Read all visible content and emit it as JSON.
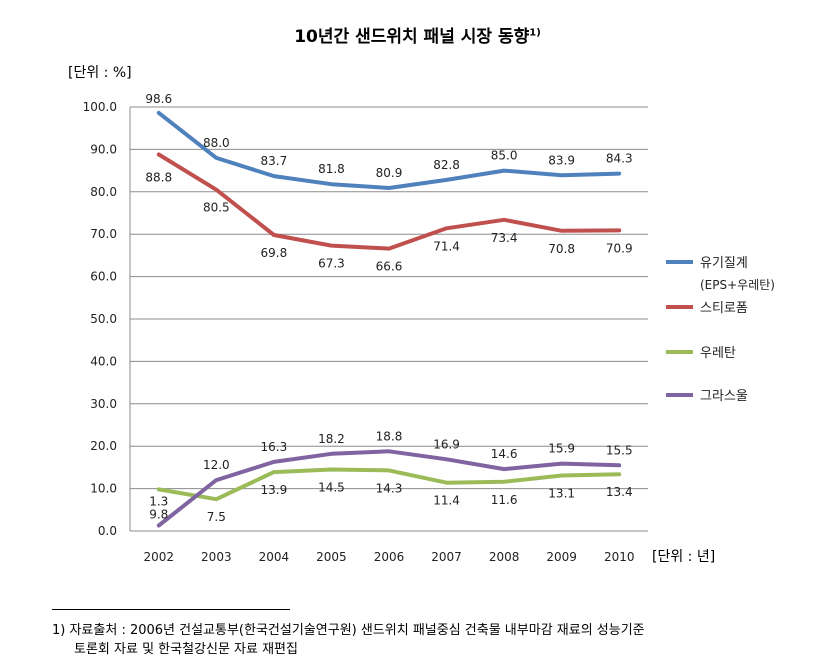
{
  "title": "10년간 샌드위치 패널 시장 동향",
  "title_sup": "1)",
  "y_unit_label": "[단위 : %]",
  "x_unit_label": "[단위 : 년]",
  "chart_data": {
    "type": "line",
    "title": "10년간 샌드위치 패널 시장 동향",
    "xlabel": "[단위 : 년]",
    "ylabel": "[단위 : %]",
    "ylim": [
      0,
      100
    ],
    "yticks": [
      "0.0",
      "10.0",
      "20.0",
      "30.0",
      "40.0",
      "50.0",
      "60.0",
      "70.0",
      "80.0",
      "90.0",
      "100.0"
    ],
    "grid": true,
    "legend_position": "right",
    "categories": [
      "2002",
      "2003",
      "2004",
      "2005",
      "2006",
      "2007",
      "2008",
      "2009",
      "2010"
    ],
    "series": [
      {
        "name": "유기질계",
        "sublabel": "(EPS+우레탄)",
        "color": "#4F81BD",
        "values": [
          98.6,
          88.0,
          83.7,
          81.8,
          80.9,
          82.8,
          85.0,
          83.9,
          84.3
        ],
        "labels": [
          "98.6",
          "88.0",
          "83.7",
          "81.8",
          "80.9",
          "82.8",
          "85.0",
          "83.9",
          "84.3"
        ]
      },
      {
        "name": "스티로폼",
        "color": "#C0504D",
        "values": [
          88.8,
          80.5,
          69.8,
          67.3,
          66.6,
          71.4,
          73.4,
          70.8,
          70.9
        ],
        "labels": [
          "88.8",
          "80.5",
          "69.8",
          "67.3",
          "66.6",
          "71.4",
          "73.4",
          "70.8",
          "70.9"
        ]
      },
      {
        "name": "우레탄",
        "color": "#9BBB59",
        "values": [
          9.8,
          7.5,
          13.9,
          14.5,
          14.3,
          11.4,
          11.6,
          13.1,
          13.4
        ],
        "labels": [
          "9.8",
          "7.5",
          "13.9",
          "14.5",
          "14.3",
          "11.4",
          "11.6",
          "13.1",
          "13.4"
        ]
      },
      {
        "name": "그라스울",
        "color": "#8064A2",
        "values": [
          1.3,
          12.0,
          16.3,
          18.2,
          18.8,
          16.9,
          14.6,
          15.9,
          15.5
        ],
        "labels": [
          "1.3",
          "12.0",
          "16.3",
          "18.2",
          "18.8",
          "16.9",
          "14.6",
          "15.9",
          "15.5"
        ]
      }
    ]
  },
  "footnote": {
    "line1": "1) 자료출처 : 2006년 건설교통부(한국건설기술연구원) 샌드위치 패널중심 건축물 내부마감 재료의 성능기준",
    "line2": "토론회 자료 및 한국철강신문 자료 재편집"
  }
}
